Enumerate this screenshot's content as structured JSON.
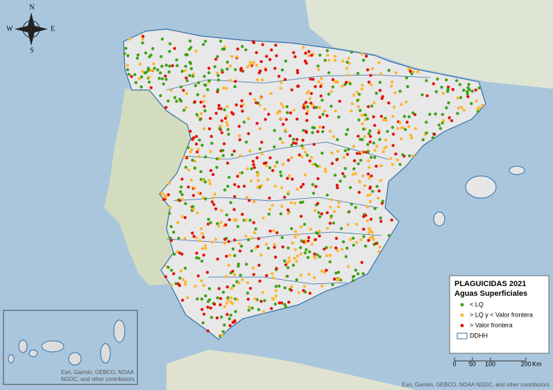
{
  "compass": {
    "north": "N",
    "east": "E",
    "south": "S",
    "west": "W"
  },
  "legend": {
    "title": "PLAGUICIDAS 2021",
    "subtitle": "Aguas Superficiales",
    "items": [
      {
        "label": "< LQ",
        "color": "#3ea216"
      },
      {
        "label": "> LQ y < Valor frontera",
        "color": "#ffb52e"
      },
      {
        "label": "> Valor frontera",
        "color": "#e3140c"
      },
      {
        "label": "DDHH",
        "color": "#2e6da4"
      }
    ]
  },
  "scale_bar": {
    "ticks": [
      0,
      50,
      100,
      200
    ],
    "unit": "Km"
  },
  "attribution": "Esri, Garmin, GEBCO, NOAA NGDC, and other contributors",
  "inset": {
    "attribution": [
      "Esri, Garmin, GEBCO, NOAA",
      "NGDC, and other contributors"
    ]
  }
}
